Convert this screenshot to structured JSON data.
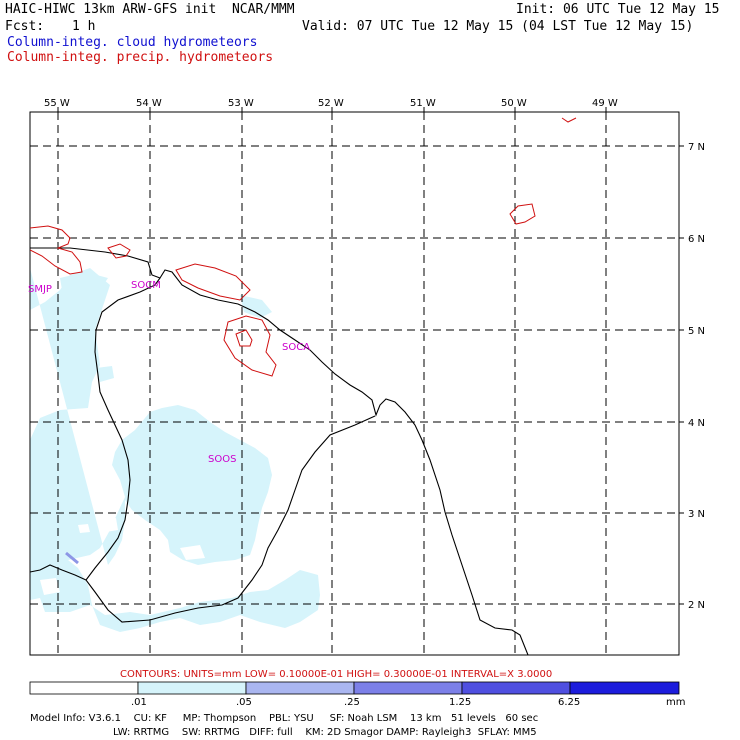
{
  "header": {
    "title": "HAIC-HIWC 13km ARW-GFS init  NCAR/MMM",
    "init": "Init: 06 UTC Tue 12 May 15",
    "fcst_label": "Fcst:",
    "fcst_value": "1 h",
    "valid": "Valid: 07 UTC Tue 12 May 15 (04 LST Tue 12 May 15)",
    "field1": "Column-integ. cloud hydrometeors",
    "field2": "Column-integ. precip. hydrometeors"
  },
  "colors": {
    "field1": "#1010d0",
    "field2": "#d01010",
    "cloud_fill": "#d6f4fb",
    "coast": "#000000",
    "label": "#cc00cc"
  },
  "map": {
    "lon_labels": [
      "55 W",
      "54 W",
      "53 W",
      "52 W",
      "51 W",
      "50 W",
      "49 W"
    ],
    "lat_labels": [
      "7 N",
      "6 N",
      "5 N",
      "4 N",
      "3 N",
      "2 N"
    ],
    "stations": [
      "SMJP",
      "SOCM",
      "SOCA",
      "SOOS"
    ]
  },
  "contour_note": "CONTOURS:  UNITS=mm  LOW= 0.10000E-01  HIGH= 0.30000E-01  INTERVAL=X  3.0000",
  "colorbar": {
    "ticks": [
      ".01",
      ".05",
      ".25",
      "1.25",
      "6.25"
    ],
    "unit": "mm",
    "colors": [
      "#ffffff",
      "#d6f4fb",
      "#aab6f0",
      "#7c80e8",
      "#4f4fe0",
      "#1c1cdc"
    ]
  },
  "model_info": {
    "line1": "Model Info: V3.6.1    CU: KF     MP: Thompson    PBL: YSU     SF: Noah LSM    13 km   51 levels   60 sec",
    "line2": "LW: RRTMG    SW: RRTMG   DIFF: full    KM: 2D Smagor DAMP: Rayleigh3  SFLAY: MM5"
  }
}
